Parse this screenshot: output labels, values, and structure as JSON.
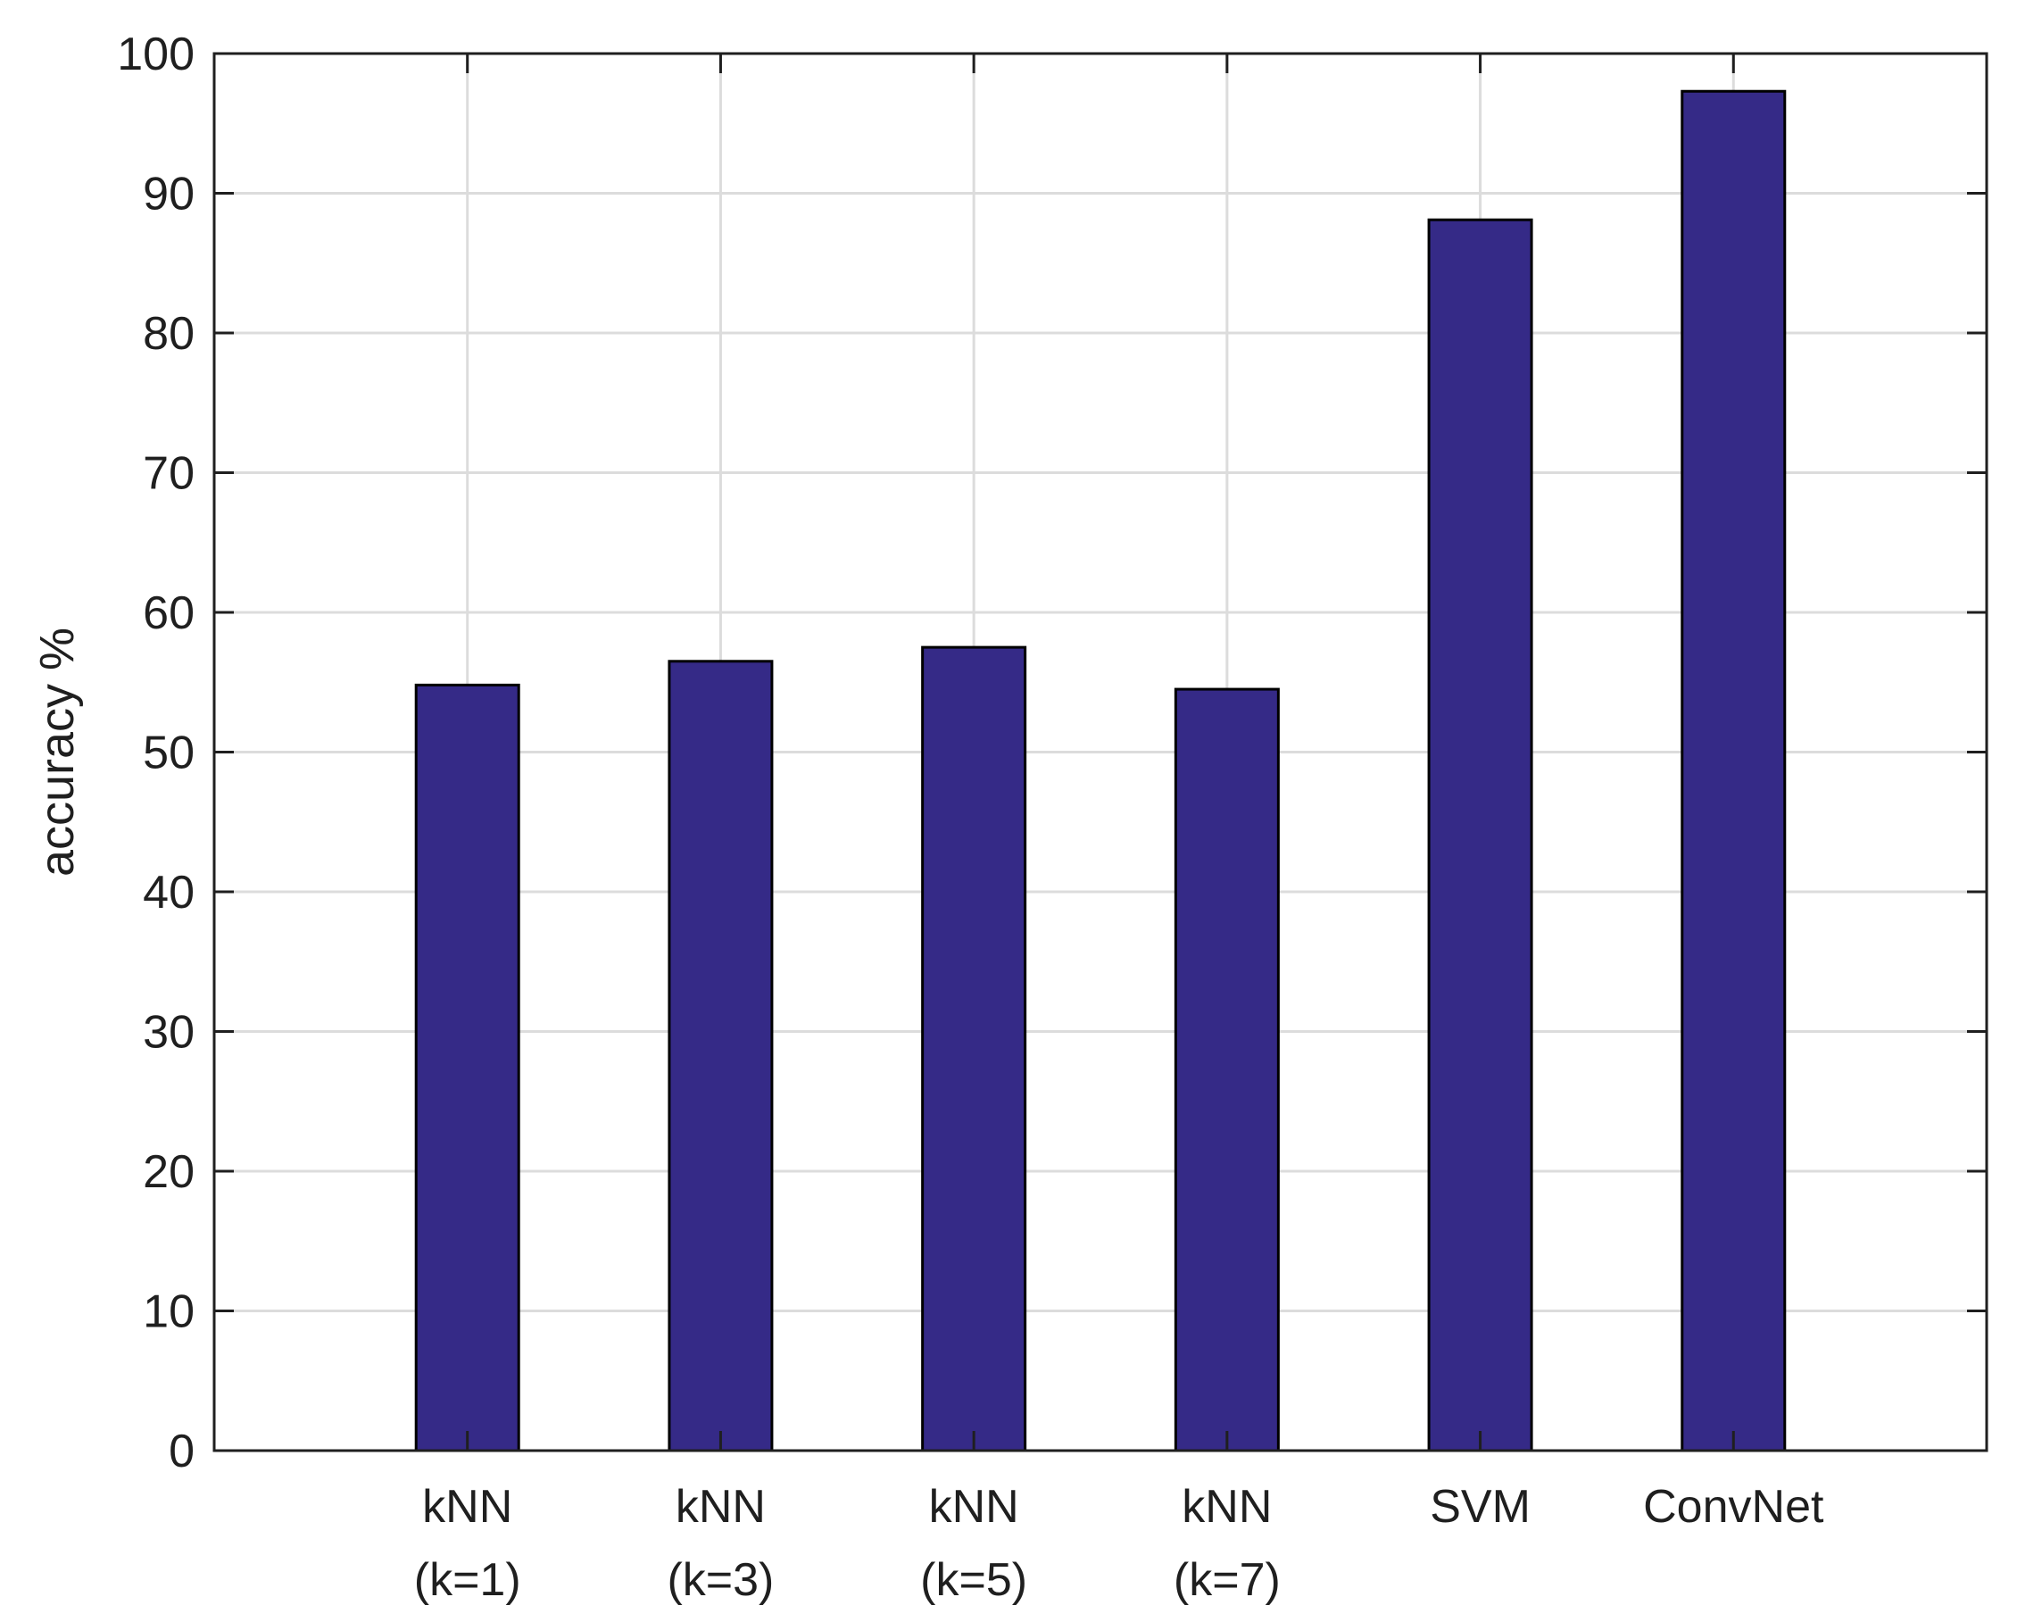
{
  "chart_data": {
    "type": "bar",
    "title": "",
    "xlabel": "",
    "ylabel": "accuracy  %",
    "ylim": [
      0,
      100
    ],
    "yticks": [
      0,
      10,
      20,
      30,
      40,
      50,
      60,
      70,
      80,
      90,
      100
    ],
    "xlim": [
      0,
      7
    ],
    "grid": true,
    "categories": [
      [
        "kNN",
        "(k=1)"
      ],
      [
        "kNN",
        "(k=3)"
      ],
      [
        "kNN",
        "(k=5)"
      ],
      [
        "kNN",
        "(k=7)"
      ],
      [
        "SVM"
      ],
      [
        "ConvNet"
      ]
    ],
    "x": [
      1,
      2,
      3,
      4,
      5,
      6
    ],
    "values": [
      54.8,
      56.5,
      57.5,
      54.5,
      88.1,
      97.3
    ],
    "bar_color": "#352a87",
    "edge_color": "#000000",
    "grid_color": "#dcdcdc",
    "axis_color": "#1f1f1f"
  }
}
